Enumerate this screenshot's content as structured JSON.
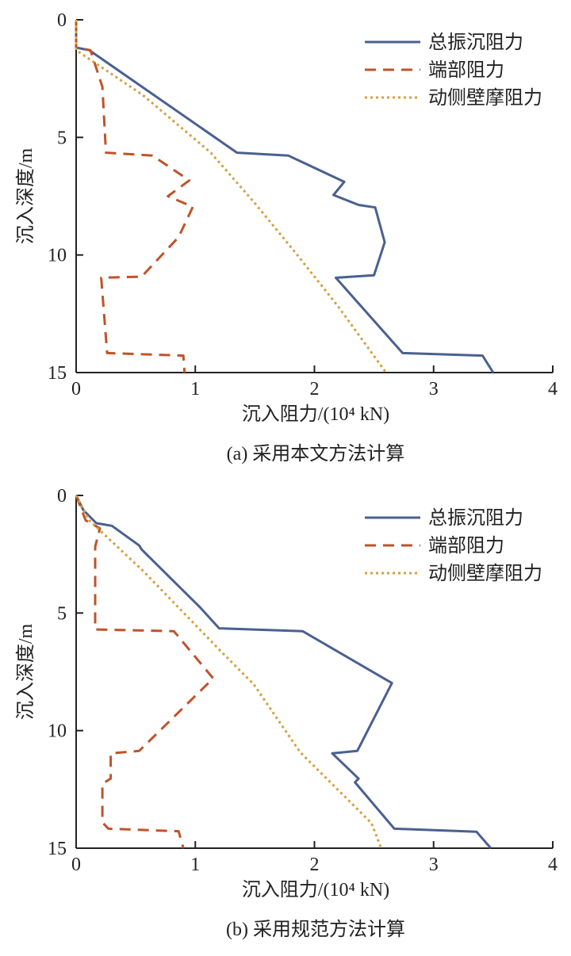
{
  "chart_data": [
    {
      "type": "line",
      "caption": "(a) 采用本文方法计算",
      "xlabel": "沉入阻力/(10⁴ kN)",
      "ylabel": "沉入深度/m",
      "xlim": [
        0,
        4
      ],
      "ylim": [
        0,
        15
      ],
      "y_inverted": true,
      "xticks": [
        "0",
        "1",
        "2",
        "3",
        "4"
      ],
      "yticks": [
        "0",
        "5",
        "10",
        "15"
      ],
      "grid": false,
      "legend_position": "top-right",
      "series": [
        {
          "name": "总振沉阻力",
          "color": "#4a6090",
          "style": "solid",
          "points": [
            [
              0,
              0
            ],
            [
              0,
              1.18
            ],
            [
              0.11,
              1.29
            ],
            [
              1.35,
              5.65
            ],
            [
              1.78,
              5.77
            ],
            [
              2.25,
              6.89
            ],
            [
              2.16,
              7.45
            ],
            [
              2.37,
              7.87
            ],
            [
              2.51,
              7.98
            ],
            [
              2.59,
              9.46
            ],
            [
              2.5,
              10.86
            ],
            [
              2.18,
              10.97
            ],
            [
              2.74,
              14.17
            ],
            [
              3.41,
              14.28
            ],
            [
              3.5,
              15
            ]
          ]
        },
        {
          "name": "端部阻力",
          "color": "#c0532a",
          "style": "dashed",
          "points": [
            [
              0,
              0
            ],
            [
              0,
              1.18
            ],
            [
              0.12,
              1.29
            ],
            [
              0.22,
              2.85
            ],
            [
              0.25,
              5.65
            ],
            [
              0.64,
              5.77
            ],
            [
              0.95,
              6.83
            ],
            [
              0.77,
              7.5
            ],
            [
              0.98,
              7.95
            ],
            [
              0.86,
              9.24
            ],
            [
              0.55,
              10.92
            ],
            [
              0.21,
              10.97
            ],
            [
              0.26,
              14.17
            ],
            [
              0.9,
              14.28
            ],
            [
              0.91,
              15
            ]
          ]
        },
        {
          "name": "动侧壁摩阻力",
          "color": "#d4a040",
          "style": "dotted",
          "points": [
            [
              0,
              0
            ],
            [
              0,
              1.29
            ],
            [
              0.56,
              3.2
            ],
            [
              1.13,
              5.65
            ],
            [
              1.5,
              7.8
            ],
            [
              1.84,
              9.9
            ],
            [
              2.2,
              12.2
            ],
            [
              2.6,
              15
            ]
          ]
        }
      ]
    },
    {
      "type": "line",
      "caption": "(b) 采用规范方法计算",
      "xlabel": "沉入阻力/(10⁴ kN)",
      "ylabel": "沉入深度/m",
      "xlim": [
        0,
        4
      ],
      "ylim": [
        0,
        15
      ],
      "y_inverted": true,
      "xticks": [
        "0",
        "1",
        "2",
        "3",
        "4"
      ],
      "yticks": [
        "0",
        "5",
        "10",
        "15"
      ],
      "grid": false,
      "legend_position": "top-right",
      "series": [
        {
          "name": "总振沉阻力",
          "color": "#4a6090",
          "style": "solid",
          "points": [
            [
              0,
              0
            ],
            [
              0.06,
              0.62
            ],
            [
              0.17,
              1.18
            ],
            [
              0.3,
              1.29
            ],
            [
              0.53,
              2.13
            ],
            [
              0.55,
              2.3
            ],
            [
              1.04,
              4.76
            ],
            [
              1.2,
              5.65
            ],
            [
              1.9,
              5.77
            ],
            [
              2.65,
              7.98
            ],
            [
              2.36,
              10.86
            ],
            [
              2.15,
              10.97
            ],
            [
              2.37,
              12.04
            ],
            [
              2.34,
              12.2
            ],
            [
              2.67,
              14.17
            ],
            [
              3.36,
              14.3
            ],
            [
              3.48,
              15
            ]
          ]
        },
        {
          "name": "端部阻力",
          "color": "#c0532a",
          "style": "dashed",
          "points": [
            [
              0,
              0
            ],
            [
              0.08,
              1.06
            ],
            [
              0.2,
              1.4
            ],
            [
              0.16,
              2.18
            ],
            [
              0.16,
              5.7
            ],
            [
              0.82,
              5.77
            ],
            [
              1.15,
              7.78
            ],
            [
              0.53,
              10.86
            ],
            [
              0.29,
              10.97
            ],
            [
              0.29,
              12.04
            ],
            [
              0.22,
              12.26
            ],
            [
              0.22,
              13.9
            ],
            [
              0.27,
              14.17
            ],
            [
              0.86,
              14.28
            ],
            [
              0.9,
              15
            ]
          ]
        },
        {
          "name": "动侧壁摩阻力",
          "color": "#d4a040",
          "style": "dotted",
          "points": [
            [
              0,
              0
            ],
            [
              0.11,
              1.06
            ],
            [
              0.56,
              3.2
            ],
            [
              1.2,
              6.55
            ],
            [
              1.49,
              8.03
            ],
            [
              1.88,
              10.92
            ],
            [
              2.48,
              13.94
            ],
            [
              2.56,
              15
            ]
          ]
        }
      ]
    }
  ]
}
